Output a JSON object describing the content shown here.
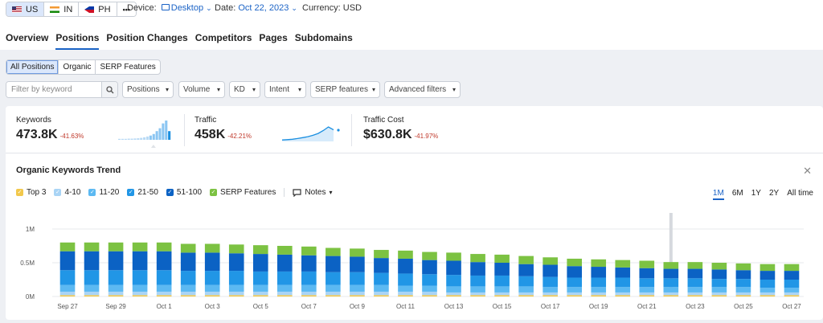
{
  "databases": [
    {
      "code": "US",
      "flag": "flag-us",
      "active": true
    },
    {
      "code": "IN",
      "flag": "flag-in",
      "active": false
    },
    {
      "code": "PH",
      "flag": "flag-ph",
      "active": false
    }
  ],
  "more_label": "•••",
  "device": {
    "label": "Device:",
    "value": "Desktop"
  },
  "date": {
    "label": "Date:",
    "value": "Oct 22, 2023"
  },
  "currency": {
    "label": "Currency:",
    "value": "USD"
  },
  "tabs": [
    "Overview",
    "Positions",
    "Position Changes",
    "Competitors",
    "Pages",
    "Subdomains"
  ],
  "active_tab": "Positions",
  "position_types": [
    "All Positions",
    "Organic",
    "SERP Features"
  ],
  "filters": {
    "search_placeholder": "Filter by keyword",
    "positions": "Positions",
    "volume": "Volume",
    "kd": "KD",
    "intent": "Intent",
    "serp_features": "SERP features",
    "advanced": "Advanced filters"
  },
  "metrics": {
    "keywords": {
      "label": "Keywords",
      "value": "473.8K",
      "change": "-41.63%"
    },
    "traffic": {
      "label": "Traffic",
      "value": "458K",
      "change": "-42.21%"
    },
    "traffic_cost": {
      "label": "Traffic Cost",
      "value": "$630.8K",
      "change": "-41.97%"
    }
  },
  "trend": {
    "title": "Organic Keywords Trend",
    "close_icon": "close-icon",
    "notes_label": "Notes",
    "ranges": [
      "1M",
      "6M",
      "1Y",
      "2Y",
      "All time"
    ],
    "active_range": "1M"
  },
  "legend": [
    {
      "name": "Top 3",
      "color": "#f2c84b"
    },
    {
      "name": "4-10",
      "color": "#a9d4f5"
    },
    {
      "name": "11-20",
      "color": "#5cb9f2"
    },
    {
      "name": "21-50",
      "color": "#2196e6"
    },
    {
      "name": "51-100",
      "color": "#0b62c4"
    },
    {
      "name": "SERP Features",
      "color": "#7cc242"
    }
  ],
  "chart_data": {
    "type": "bar",
    "stacked": true,
    "ylim": [
      0,
      1000000
    ],
    "y_ticks": [
      "0M",
      "0.5M",
      "1M"
    ],
    "x_tick_labels": [
      "Sep 27",
      "Sep 29",
      "Oct 1",
      "Oct 3",
      "Oct 5",
      "Oct 7",
      "Oct 9",
      "Oct 11",
      "Oct 13",
      "Oct 15",
      "Oct 17",
      "Oct 19",
      "Oct 21",
      "Oct 23",
      "Oct 25",
      "Oct 27"
    ],
    "categories": [
      "Sep 27",
      "Sep 28",
      "Sep 29",
      "Sep 30",
      "Oct 1",
      "Oct 2",
      "Oct 3",
      "Oct 4",
      "Oct 5",
      "Oct 6",
      "Oct 7",
      "Oct 8",
      "Oct 9",
      "Oct 10",
      "Oct 11",
      "Oct 12",
      "Oct 13",
      "Oct 14",
      "Oct 15",
      "Oct 16",
      "Oct 17",
      "Oct 18",
      "Oct 19",
      "Oct 20",
      "Oct 21",
      "Oct 22",
      "Oct 23",
      "Oct 24",
      "Oct 25",
      "Oct 26",
      "Oct 27"
    ],
    "highlight_category": "Oct 22",
    "series": [
      {
        "name": "Top 3",
        "color": "#f2c84b",
        "values": [
          20000,
          20000,
          20000,
          20000,
          20000,
          20000,
          20000,
          20000,
          20000,
          20000,
          20000,
          20000,
          20000,
          20000,
          20000,
          20000,
          20000,
          20000,
          20000,
          20000,
          20000,
          20000,
          20000,
          20000,
          20000,
          20000,
          20000,
          20000,
          20000,
          20000,
          20000
        ]
      },
      {
        "name": "4-10",
        "color": "#a9d4f5",
        "values": [
          50000,
          50000,
          50000,
          50000,
          50000,
          50000,
          50000,
          50000,
          50000,
          50000,
          50000,
          50000,
          50000,
          50000,
          50000,
          50000,
          40000,
          40000,
          40000,
          40000,
          40000,
          40000,
          40000,
          40000,
          40000,
          40000,
          40000,
          40000,
          40000,
          40000,
          40000
        ]
      },
      {
        "name": "11-20",
        "color": "#5cb9f2",
        "values": [
          100000,
          100000,
          100000,
          100000,
          100000,
          100000,
          100000,
          100000,
          100000,
          100000,
          100000,
          100000,
          100000,
          100000,
          90000,
          90000,
          90000,
          90000,
          90000,
          90000,
          80000,
          80000,
          80000,
          80000,
          80000,
          80000,
          80000,
          80000,
          80000,
          70000,
          70000
        ]
      },
      {
        "name": "21-50",
        "color": "#2196e6",
        "values": [
          220000,
          220000,
          220000,
          220000,
          220000,
          210000,
          210000,
          210000,
          200000,
          200000,
          200000,
          190000,
          190000,
          180000,
          180000,
          170000,
          170000,
          160000,
          160000,
          150000,
          150000,
          140000,
          140000,
          140000,
          130000,
          130000,
          130000,
          120000,
          120000,
          120000,
          120000
        ]
      },
      {
        "name": "51-100",
        "color": "#0b62c4",
        "values": [
          280000,
          280000,
          280000,
          280000,
          280000,
          270000,
          270000,
          260000,
          260000,
          250000,
          240000,
          240000,
          230000,
          220000,
          220000,
          210000,
          210000,
          200000,
          190000,
          180000,
          180000,
          170000,
          160000,
          150000,
          150000,
          140000,
          140000,
          140000,
          130000,
          130000,
          130000
        ]
      },
      {
        "name": "SERP Features",
        "color": "#7cc242",
        "values": [
          130000,
          130000,
          130000,
          130000,
          130000,
          130000,
          130000,
          130000,
          130000,
          130000,
          130000,
          120000,
          120000,
          120000,
          120000,
          120000,
          120000,
          120000,
          120000,
          120000,
          110000,
          110000,
          110000,
          110000,
          110000,
          100000,
          100000,
          100000,
          100000,
          100000,
          100000
        ]
      }
    ]
  },
  "mini_charts": {
    "keywords_bars": [
      0.05,
      0.05,
      0.05,
      0.06,
      0.06,
      0.07,
      0.08,
      0.1,
      0.13,
      0.17,
      0.22,
      0.3,
      0.45,
      0.6,
      0.85,
      1.0,
      0.45
    ],
    "traffic_line": [
      0.1,
      0.12,
      0.15,
      0.2,
      0.26,
      0.33,
      0.42,
      0.55,
      0.75,
      1.0,
      0.8
    ]
  }
}
